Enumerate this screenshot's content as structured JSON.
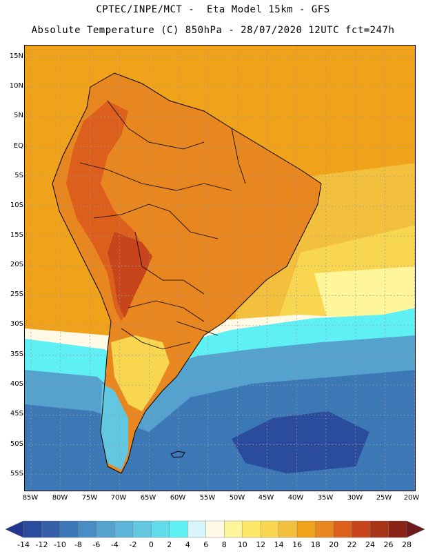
{
  "header": {
    "line1": "CPTEC/INPE/MCT -  Eta Model 15km - GFS",
    "line2": "Absolute Temperature (C) 850hPa - 28/07/2020 12UTC fct=247h"
  },
  "map": {
    "region": "South America",
    "variable": "Absolute Temperature",
    "units": "C",
    "level": "850hPa",
    "lat_labels": [
      "15N",
      "10N",
      "5N",
      "EQ",
      "5S",
      "10S",
      "15S",
      "20S",
      "25S",
      "30S",
      "35S",
      "40S",
      "45S",
      "50S",
      "55S"
    ],
    "lon_labels": [
      "85W",
      "80W",
      "75W",
      "70W",
      "65W",
      "60W",
      "55W",
      "50W",
      "45W",
      "40W",
      "35W",
      "30W",
      "25W",
      "20W"
    ]
  },
  "colorbar": {
    "labels": [
      "-14",
      "-12",
      "-10",
      "-8",
      "-6",
      "-4",
      "-2",
      "0",
      "2",
      "4",
      "6",
      "8",
      "10",
      "12",
      "14",
      "16",
      "18",
      "20",
      "22",
      "24",
      "26",
      "28"
    ],
    "colors": {
      "below": "#23378f",
      "bins": [
        "#2b4b9c",
        "#3560a8",
        "#3d78b6",
        "#4a8dc4",
        "#56a2cf",
        "#5fb5d9",
        "#62c8e2",
        "#62dceb",
        "#5ef0f4",
        "#d8f4fb",
        "#fff9e6",
        "#fff59a",
        "#ffe868",
        "#f9d650",
        "#f2c03c",
        "#efa21a",
        "#e8861f",
        "#dc5f1c",
        "#c8441b",
        "#a83418",
        "#8a2416"
      ],
      "above": "#6e1a1a"
    },
    "field_colors": {
      "ocean_north": "#efa21a",
      "ocean_subtropic": "#f2c03c",
      "ocean_warm_band": "#f9d650",
      "ocean_light": "#fff59a",
      "ocean_front": "#fff9e6",
      "ocean_cold_1": "#5ef0f4",
      "ocean_cold_2": "#56a2cf",
      "ocean_cold_3": "#3d78b6",
      "ocean_cold_4": "#2b4b9c",
      "land_warm": "#e8861f",
      "land_hot": "#dc5f1c",
      "land_hotter": "#c8441b",
      "patagonia_light": "#f9d650",
      "andes_cold": "#62c8e2"
    }
  }
}
